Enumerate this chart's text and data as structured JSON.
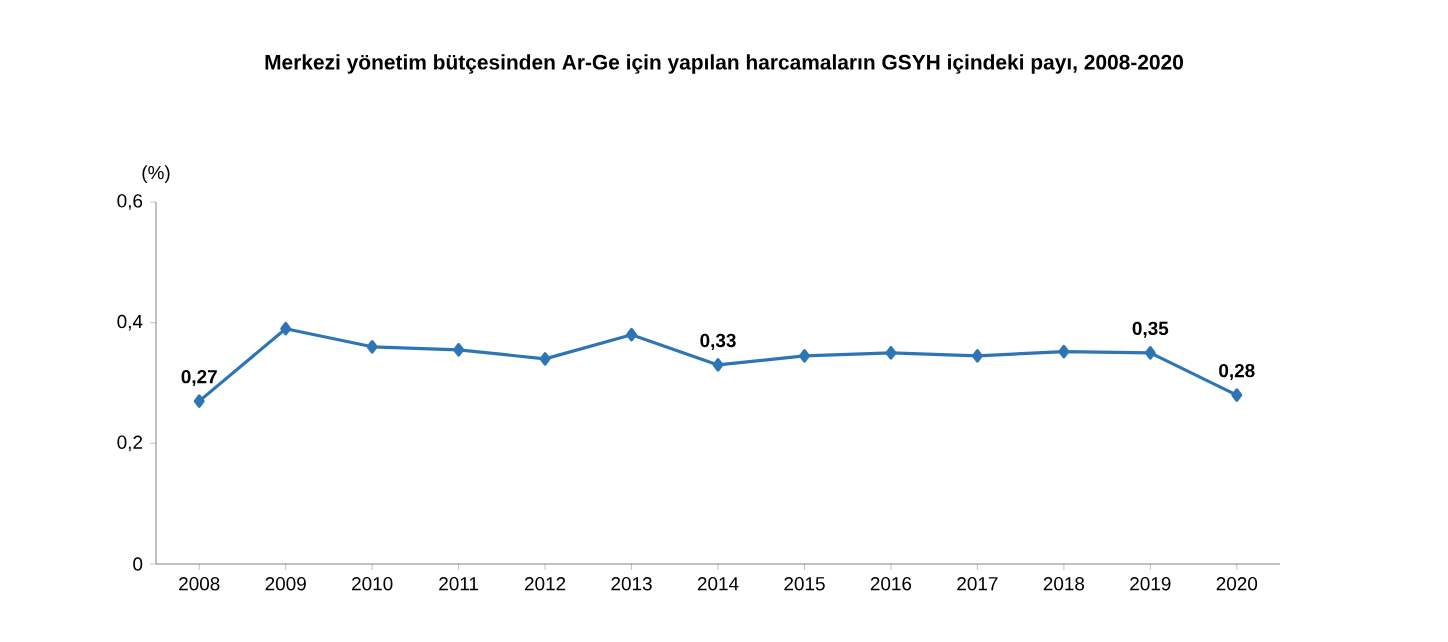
{
  "chart_data": {
    "type": "line",
    "title": "Merkezi yönetim bütçesinden Ar-Ge için yapılan harcamaların GSYH içindeki payı, 2008-2020",
    "ylabel": "(%)",
    "categories": [
      "2008",
      "2009",
      "2010",
      "2011",
      "2012",
      "2013",
      "2014",
      "2015",
      "2016",
      "2017",
      "2018",
      "2019",
      "2020"
    ],
    "values": [
      0.27,
      0.39,
      0.36,
      0.355,
      0.34,
      0.38,
      0.33,
      0.345,
      0.35,
      0.345,
      0.352,
      0.35,
      0.28
    ],
    "value_labels": [
      "0,27",
      null,
      null,
      null,
      null,
      null,
      "0,33",
      null,
      null,
      null,
      null,
      "0,35",
      "0,28"
    ],
    "color": "#2e75b6",
    "marker": "diamond",
    "line_style": "solid",
    "ylim": [
      0,
      0.6
    ],
    "yticks": [
      {
        "value": 0,
        "label": "0"
      },
      {
        "value": 0.2,
        "label": "0,2"
      },
      {
        "value": 0.4,
        "label": "0,4"
      },
      {
        "value": 0.6,
        "label": "0,6"
      }
    ]
  }
}
